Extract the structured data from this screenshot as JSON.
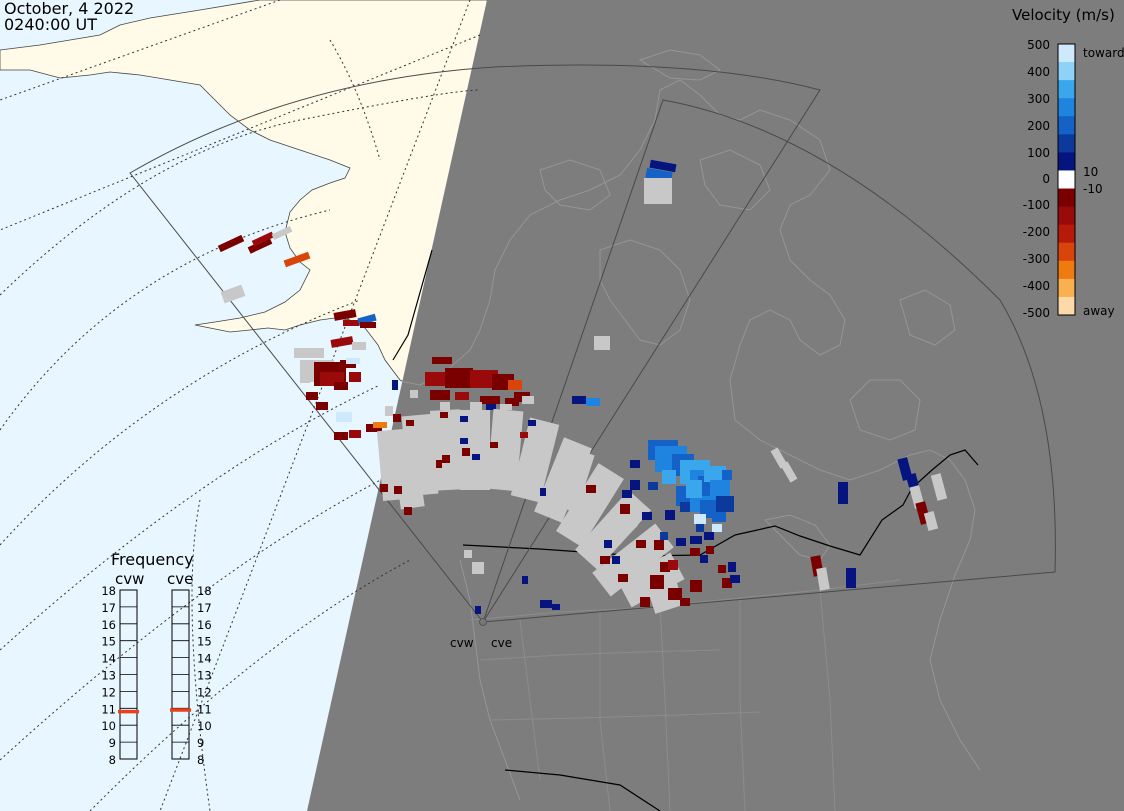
{
  "header": {
    "date": "October, 4 2022",
    "time": "0240:00 UT"
  },
  "legend": {
    "title": "Velocity (m/s)",
    "ticks": [
      "500",
      "400",
      "300",
      "200",
      "100",
      "10",
      "0",
      "-10",
      "-100",
      "-200",
      "-300",
      "-400",
      "-500"
    ],
    "toward_label": "toward",
    "away_label": "away",
    "colors": [
      "#cde9fb",
      "#8ed3f7",
      "#3aa7ec",
      "#1f84e0",
      "#1462c7",
      "#0b3a9c",
      "#06147f",
      "#ffffff",
      "#7a0000",
      "#9b0a0a",
      "#b81a0a",
      "#d8450a",
      "#ef7a10",
      "#f8b050",
      "#fcd9a8"
    ]
  },
  "frequency": {
    "title": "Frequency",
    "radars": [
      {
        "name": "cvw",
        "value": 10.8
      },
      {
        "name": "cve",
        "value": 10.9
      }
    ],
    "scale": [
      "18",
      "17",
      "16",
      "15",
      "14",
      "13",
      "12",
      "11",
      "10",
      "9",
      "8"
    ]
  },
  "stations": [
    {
      "name": "cvw"
    },
    {
      "name": "cve"
    }
  ],
  "colors": {
    "ocean": "#e8f6ff",
    "land_day": "#fffbe8",
    "night": "#7d7d7d",
    "ground_scatter": "#c8c8c8",
    "grid": "#333333",
    "marker": "#e8401a"
  }
}
